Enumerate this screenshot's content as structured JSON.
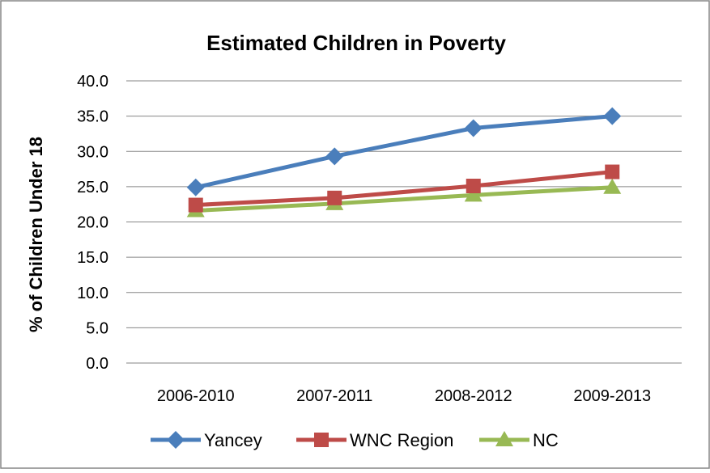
{
  "chart_data": {
    "type": "line",
    "title": "Estimated Children in Poverty",
    "xlabel": "",
    "ylabel": "% of Children Under 18",
    "categories": [
      "2006-2010",
      "2007-2011",
      "2008-2012",
      "2009-2013"
    ],
    "ylim": [
      0,
      40
    ],
    "ytick_step": 5,
    "ytick_labels": [
      "0.0",
      "5.0",
      "10.0",
      "15.0",
      "20.0",
      "25.0",
      "30.0",
      "35.0",
      "40.0"
    ],
    "grid": true,
    "legend_position": "bottom",
    "series": [
      {
        "name": "Yancey",
        "values": [
          24.9,
          29.3,
          33.3,
          35.0
        ],
        "color": "#4a7ebb",
        "marker": "diamond"
      },
      {
        "name": "WNC Region",
        "values": [
          22.4,
          23.4,
          25.1,
          27.1
        ],
        "color": "#be4b48",
        "marker": "square"
      },
      {
        "name": "NC",
        "values": [
          21.6,
          22.6,
          23.8,
          24.9
        ],
        "color": "#98b954",
        "marker": "triangle"
      }
    ]
  }
}
